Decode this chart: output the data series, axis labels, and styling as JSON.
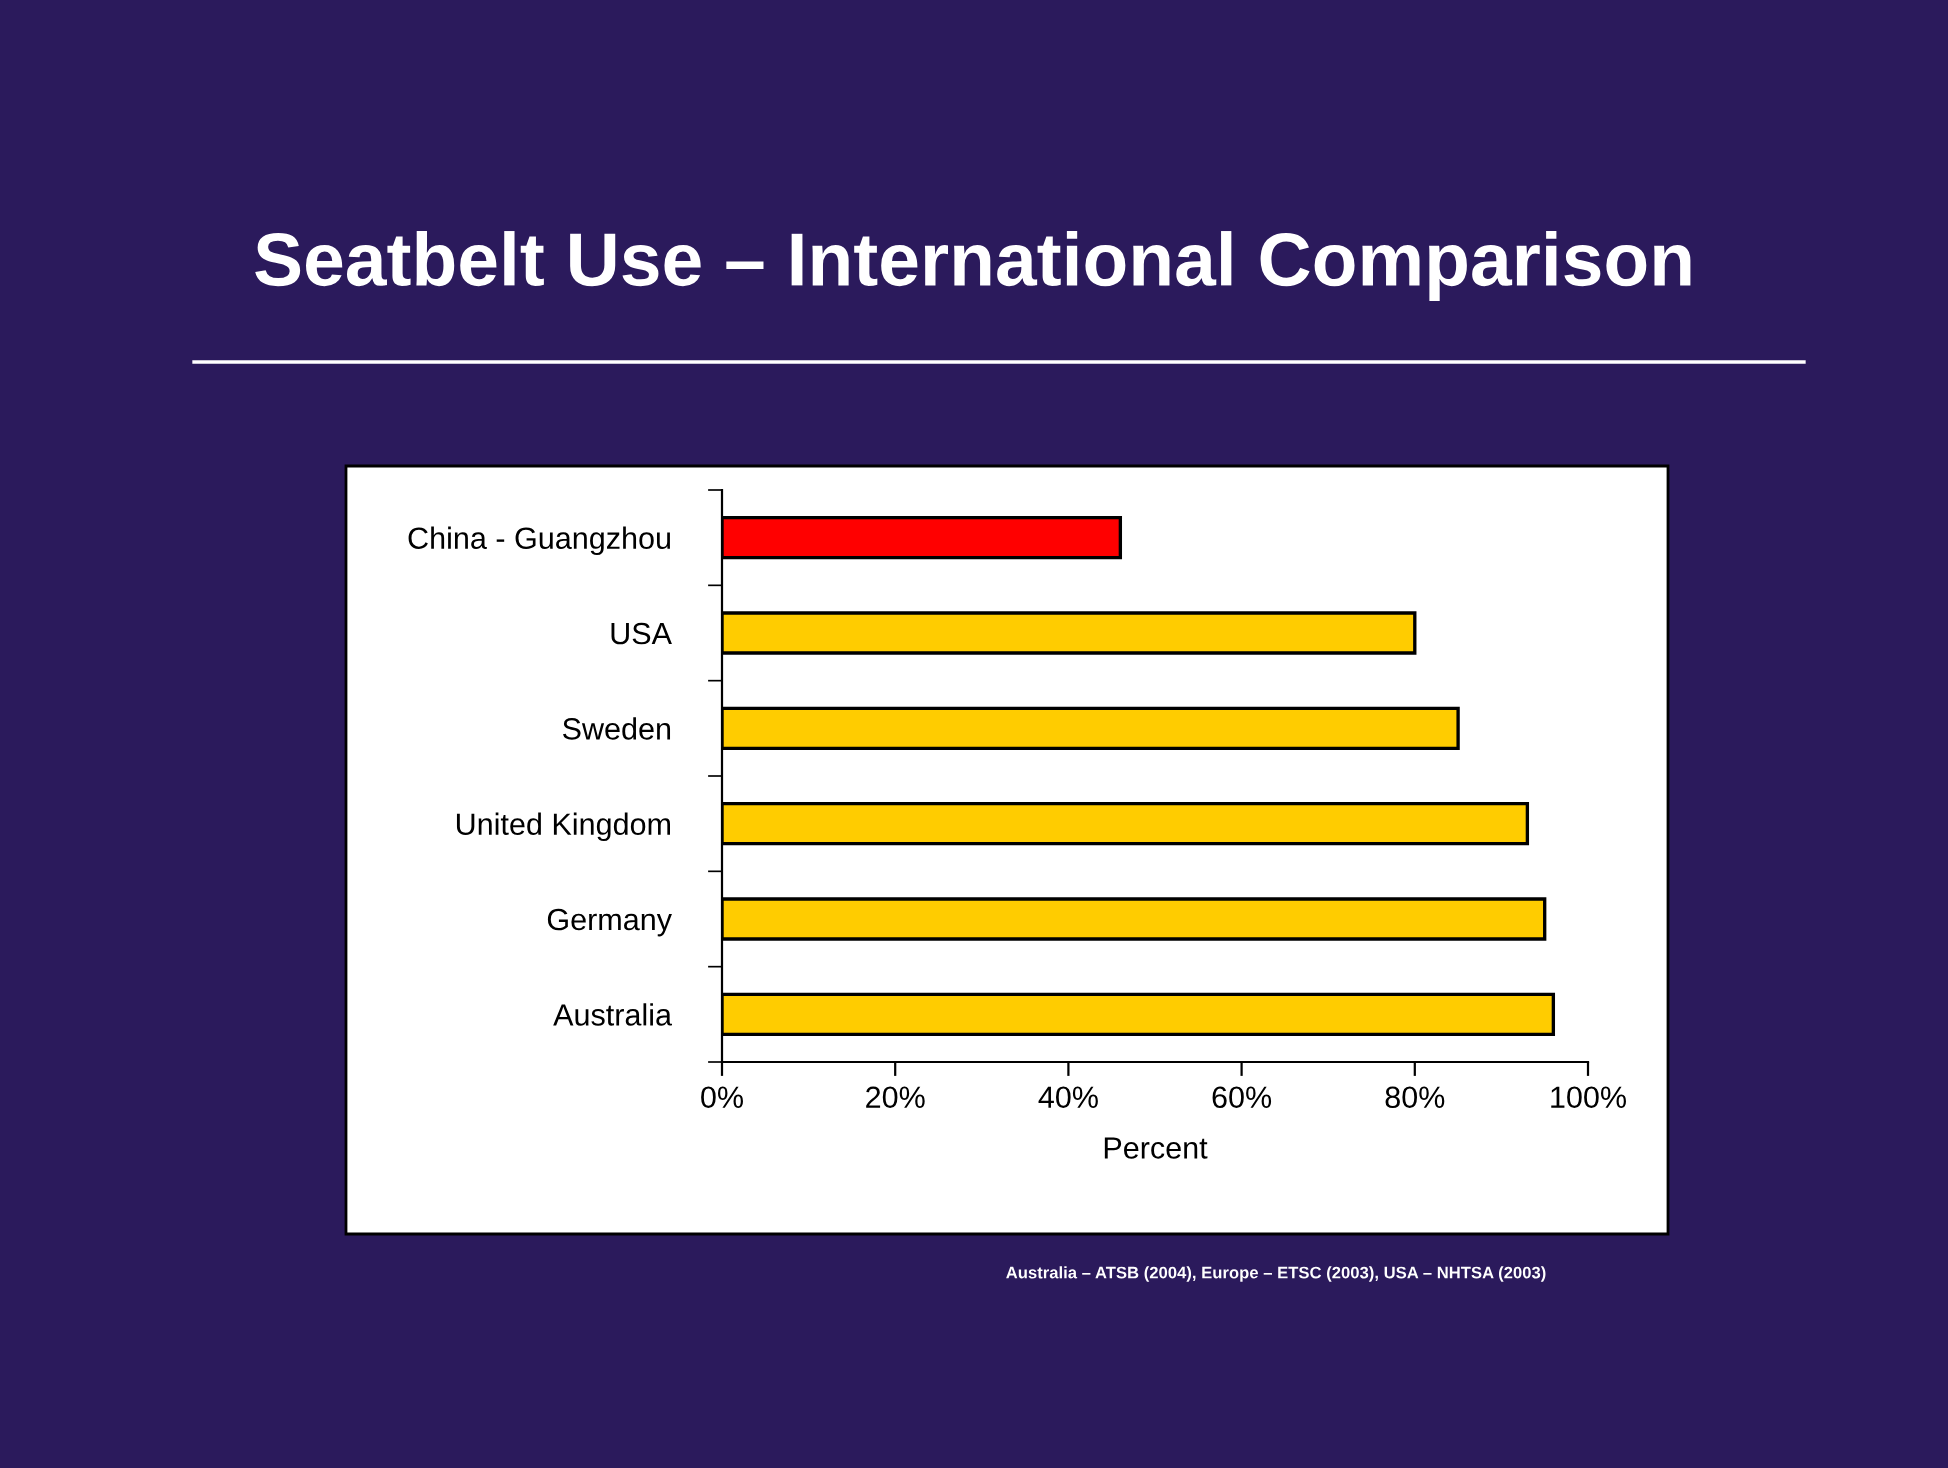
{
  "chart_data": {
    "type": "bar",
    "orientation": "horizontal",
    "title": "Seatbelt Use – International Comparison",
    "xlabel": "Percent",
    "categories": [
      "China - Guangzhou",
      "USA",
      "Sweden",
      "United Kingdom",
      "Germany",
      "Australia"
    ],
    "values": [
      46,
      80,
      85,
      93,
      95,
      96
    ],
    "colors": [
      "#ff0000",
      "#ffcc00",
      "#ffcc00",
      "#ffcc00",
      "#ffcc00",
      "#ffcc00"
    ],
    "xlim": [
      0,
      100
    ],
    "xticks": [
      {
        "value": 0,
        "label": "0%"
      },
      {
        "value": 20,
        "label": "20%"
      },
      {
        "value": 40,
        "label": "40%"
      },
      {
        "value": 60,
        "label": "60%"
      },
      {
        "value": 80,
        "label": "80%"
      },
      {
        "value": 100,
        "label": "100%"
      }
    ],
    "grid": false,
    "legend": false,
    "annotations": [
      "Australia – ATSB (2004), Europe – ETSC (2003), USA – NHTSA (2003)"
    ]
  }
}
